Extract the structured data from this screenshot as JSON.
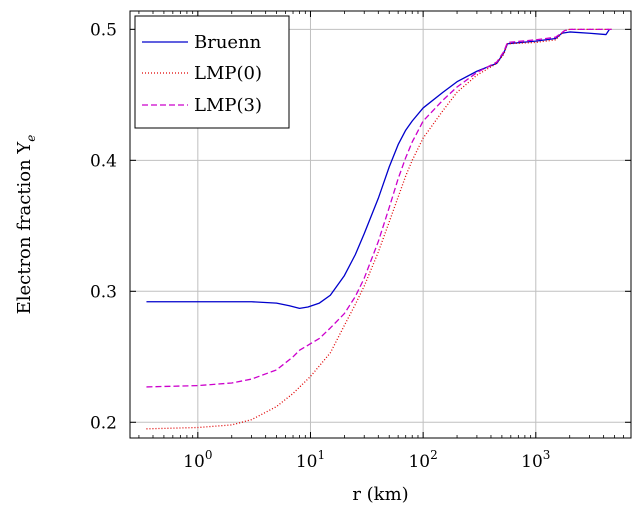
{
  "chart_data": {
    "type": "line",
    "title": "",
    "xlabel": "r (km)",
    "ylabel": "Electron fraction Y",
    "ylabel_subscript": "e",
    "xscale": "log",
    "xlim": [
      0.25,
      7000
    ],
    "ylim": [
      0.188,
      0.514
    ],
    "grid": true,
    "legend_position": "top-left",
    "x_ticks": [
      {
        "value": 1,
        "base": "10",
        "exp": "0"
      },
      {
        "value": 10,
        "base": "10",
        "exp": "1"
      },
      {
        "value": 100,
        "base": "10",
        "exp": "2"
      },
      {
        "value": 1000,
        "base": "10",
        "exp": "3"
      }
    ],
    "y_ticks": [
      {
        "value": 0.2,
        "label": "0.2"
      },
      {
        "value": 0.3,
        "label": "0.3"
      },
      {
        "value": 0.4,
        "label": "0.4"
      },
      {
        "value": 0.5,
        "label": "0.5"
      }
    ],
    "series": [
      {
        "name": "Bruenn",
        "color": "#0000cc",
        "dash": "solid",
        "x": [
          0.35,
          1,
          3,
          5,
          6.5,
          8,
          9.5,
          12,
          15,
          20,
          25,
          30,
          40,
          50,
          60,
          70,
          80,
          100,
          150,
          200,
          300,
          450,
          520,
          560,
          1000,
          1500,
          1700,
          2000,
          3000,
          4200,
          4500
        ],
        "y": [
          0.292,
          0.292,
          0.292,
          0.291,
          0.289,
          0.287,
          0.288,
          0.291,
          0.297,
          0.312,
          0.328,
          0.344,
          0.371,
          0.395,
          0.412,
          0.423,
          0.43,
          0.44,
          0.452,
          0.46,
          0.468,
          0.474,
          0.482,
          0.489,
          0.491,
          0.493,
          0.497,
          0.498,
          0.497,
          0.496,
          0.5
        ]
      },
      {
        "name": "LMP(0)",
        "color": "#e00000",
        "dash": "dotted",
        "x": [
          0.35,
          1,
          2,
          3,
          5,
          7,
          10,
          15,
          20,
          25,
          30,
          40,
          50,
          60,
          70,
          80,
          100,
          150,
          200,
          300,
          450,
          520,
          560,
          1000,
          1500,
          1800,
          2000,
          3000,
          4800
        ],
        "y": [
          0.195,
          0.196,
          0.198,
          0.202,
          0.212,
          0.222,
          0.235,
          0.253,
          0.274,
          0.29,
          0.304,
          0.33,
          0.353,
          0.372,
          0.388,
          0.4,
          0.417,
          0.438,
          0.452,
          0.465,
          0.474,
          0.481,
          0.489,
          0.49,
          0.492,
          0.499,
          0.5,
          0.5,
          0.5
        ]
      },
      {
        "name": "LMP(3)",
        "color": "#cc00cc",
        "dash": "dashed",
        "x": [
          0.35,
          1,
          2,
          3,
          5,
          7,
          8,
          10,
          12,
          15,
          20,
          25,
          30,
          40,
          50,
          60,
          70,
          80,
          100,
          150,
          200,
          300,
          450,
          520,
          560,
          1000,
          1500,
          1800,
          2000,
          3000,
          4800
        ],
        "y": [
          0.227,
          0.228,
          0.23,
          0.233,
          0.24,
          0.25,
          0.255,
          0.26,
          0.264,
          0.272,
          0.283,
          0.296,
          0.31,
          0.338,
          0.364,
          0.386,
          0.402,
          0.414,
          0.43,
          0.446,
          0.456,
          0.467,
          0.475,
          0.483,
          0.49,
          0.492,
          0.494,
          0.499,
          0.5,
          0.5,
          0.5
        ]
      }
    ]
  }
}
